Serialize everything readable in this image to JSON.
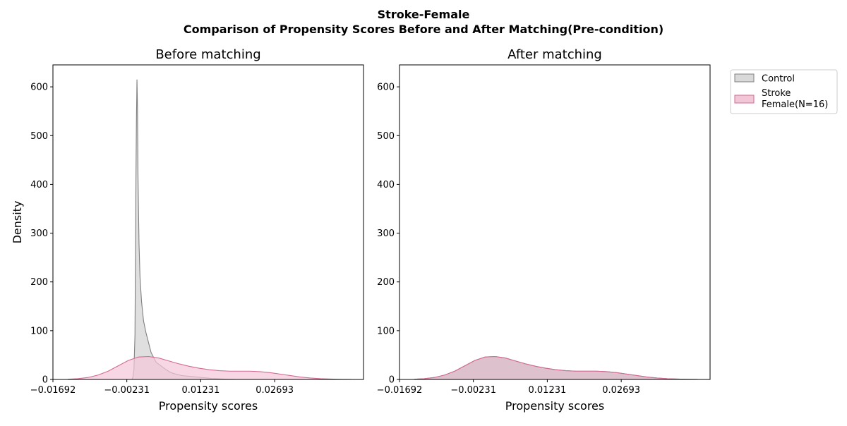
{
  "suptitle": {
    "line1": "Stroke-Female",
    "line2": "Comparison of Propensity Scores Before and After Matching(Pre-condition)"
  },
  "colors": {
    "control_line": "#808080",
    "control_fill": "#d9d9d9",
    "stroke_line": "#d46a92",
    "stroke_fill": "#f3c6d7",
    "matched_fill": "#d9b9c6"
  },
  "legend": {
    "placement": "outside-top-right",
    "entries": [
      {
        "key": "control",
        "lines": [
          "Control"
        ]
      },
      {
        "key": "stroke",
        "lines": [
          "Stroke",
          "Female(N=16)"
        ]
      }
    ]
  },
  "chart_data": [
    {
      "type": "area",
      "title": "Before matching",
      "xlabel": "Propensity scores",
      "ylabel": "Density",
      "xlim": [
        -0.01692,
        0.0445
      ],
      "ylim": [
        0,
        645
      ],
      "xticks": [
        "-0.01692",
        "-0.00231",
        "0.01231",
        "0.02693"
      ],
      "xtick_values": [
        -0.01692,
        -0.00231,
        0.01231,
        0.02693
      ],
      "yticks": [
        0,
        100,
        200,
        300,
        400,
        500,
        600
      ],
      "grid": false,
      "series": [
        {
          "name": "Control",
          "key": "control",
          "x": [
            -0.0013,
            -0.0011,
            -0.0009,
            -0.0007,
            -0.0006,
            -0.0005,
            -0.0004,
            -0.0003,
            -0.0002,
            -0.0001,
            0.0001,
            0.0003,
            0.0006,
            0.001,
            0.0015,
            0.002,
            0.0025,
            0.003,
            0.0035,
            0.0042,
            0.0048,
            0.0055,
            0.0062,
            0.007,
            0.0078,
            0.0085,
            0.0095,
            0.0105,
            0.0115,
            0.0125,
            0.0135,
            0.0145,
            0.0155,
            0.0165,
            0.0175,
            0.0185,
            0.0195
          ],
          "y": [
            0,
            5,
            20,
            90,
            250,
            420,
            540,
            615,
            560,
            420,
            280,
            210,
            160,
            120,
            95,
            75,
            55,
            45,
            35,
            30,
            25,
            20,
            15,
            12,
            10,
            8,
            7,
            6,
            5,
            4,
            3,
            2,
            1.5,
            1,
            0.5,
            0.2,
            0
          ]
        },
        {
          "name": "Stroke\nFemale(N=16)",
          "key": "stroke",
          "x": [
            -0.014,
            -0.012,
            -0.01,
            -0.008,
            -0.006,
            -0.004,
            -0.002,
            0.0,
            0.002,
            0.004,
            0.006,
            0.008,
            0.01,
            0.012,
            0.014,
            0.016,
            0.018,
            0.02,
            0.022,
            0.024,
            0.026,
            0.028,
            0.03,
            0.032,
            0.034,
            0.036,
            0.038,
            0.04,
            0.042
          ],
          "y": [
            0.5,
            1.5,
            4,
            9,
            17,
            28,
            39,
            46,
            47,
            44,
            38,
            32,
            27,
            23,
            20,
            18,
            17,
            17,
            17,
            16,
            14,
            11,
            8,
            5,
            3,
            1.5,
            0.8,
            0.3,
            0.1
          ]
        }
      ]
    },
    {
      "type": "area",
      "title": "After matching",
      "xlabel": "Propensity scores",
      "ylabel": "",
      "xlim": [
        -0.01692,
        0.0445
      ],
      "ylim": [
        0,
        645
      ],
      "xticks": [
        "-0.01692",
        "-0.00231",
        "0.01231",
        "0.02693"
      ],
      "xtick_values": [
        -0.01692,
        -0.00231,
        0.01231,
        0.02693
      ],
      "yticks": [
        0,
        100,
        200,
        300,
        400,
        500,
        600
      ],
      "grid": false,
      "series": [
        {
          "name": "Control",
          "key": "control",
          "x": [
            -0.014,
            -0.012,
            -0.01,
            -0.008,
            -0.006,
            -0.004,
            -0.002,
            0.0,
            0.002,
            0.004,
            0.006,
            0.008,
            0.01,
            0.012,
            0.014,
            0.016,
            0.018,
            0.02,
            0.022,
            0.024,
            0.026,
            0.028,
            0.03,
            0.032,
            0.034,
            0.036,
            0.038,
            0.04,
            0.042
          ],
          "y": [
            0.5,
            1.5,
            4,
            9,
            17,
            28,
            39,
            46,
            47,
            44,
            38,
            32,
            27,
            23,
            20,
            18,
            17,
            17,
            17,
            16,
            14,
            11,
            8,
            5,
            3,
            1.5,
            0.8,
            0.3,
            0.1
          ]
        },
        {
          "name": "Stroke\nFemale(N=16)",
          "key": "stroke",
          "x": [
            -0.014,
            -0.012,
            -0.01,
            -0.008,
            -0.006,
            -0.004,
            -0.002,
            0.0,
            0.002,
            0.004,
            0.006,
            0.008,
            0.01,
            0.012,
            0.014,
            0.016,
            0.018,
            0.02,
            0.022,
            0.024,
            0.026,
            0.028,
            0.03,
            0.032,
            0.034,
            0.036,
            0.038,
            0.04,
            0.042
          ],
          "y": [
            0.5,
            1.5,
            4,
            9,
            17,
            28,
            39,
            46,
            47,
            44,
            38,
            32,
            27,
            23,
            20,
            18,
            17,
            17,
            17,
            16,
            14,
            11,
            8,
            5,
            3,
            1.5,
            0.8,
            0.3,
            0.1
          ]
        }
      ]
    }
  ]
}
